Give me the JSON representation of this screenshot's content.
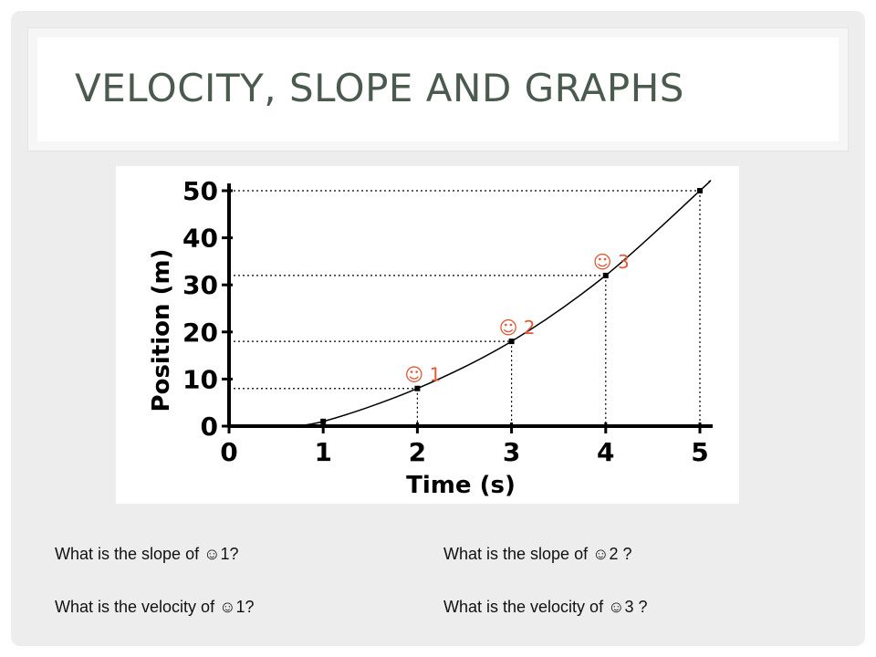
{
  "slide": {
    "title": "VELOCITY, SLOPE AND GRAPHS"
  },
  "chart_data": {
    "type": "line",
    "xlabel": "Time (s)",
    "ylabel": "Position (m)",
    "x_ticks": [
      0,
      1,
      2,
      3,
      4,
      5
    ],
    "y_ticks": [
      0,
      10,
      20,
      30,
      40,
      50
    ],
    "xlim": [
      0,
      5
    ],
    "ylim": [
      0,
      50
    ],
    "grid": false,
    "series": [
      {
        "x": [
          0.5,
          1,
          2,
          3,
          4,
          5,
          5.1
        ],
        "y": [
          0,
          1,
          8,
          18,
          32,
          50,
          52
        ]
      }
    ],
    "marked_points": [
      {
        "x": 1,
        "y": 1
      },
      {
        "x": 2,
        "y": 8
      },
      {
        "x": 3,
        "y": 18
      },
      {
        "x": 4,
        "y": 32
      },
      {
        "x": 5,
        "y": 50
      }
    ],
    "dotted_guides": [
      {
        "x": 2,
        "y": 8
      },
      {
        "x": 3,
        "y": 18
      },
      {
        "x": 4,
        "y": 32
      },
      {
        "x": 5,
        "y": 50
      }
    ],
    "annotations": [
      {
        "label": "☺ 1",
        "x": 2,
        "y": 8
      },
      {
        "label": "☺ 2",
        "x": 3,
        "y": 18
      },
      {
        "label": "☺ 3",
        "x": 4,
        "y": 32
      }
    ],
    "annotation_color": "#e05a3a",
    "line_color": "#000000"
  },
  "questions": {
    "q1": "What is the slope of ☺1?",
    "q2": "What is the velocity of ☺1?",
    "q3": "What is the slope of ☺2 ?",
    "q4": "What is the velocity of ☺3 ?"
  }
}
